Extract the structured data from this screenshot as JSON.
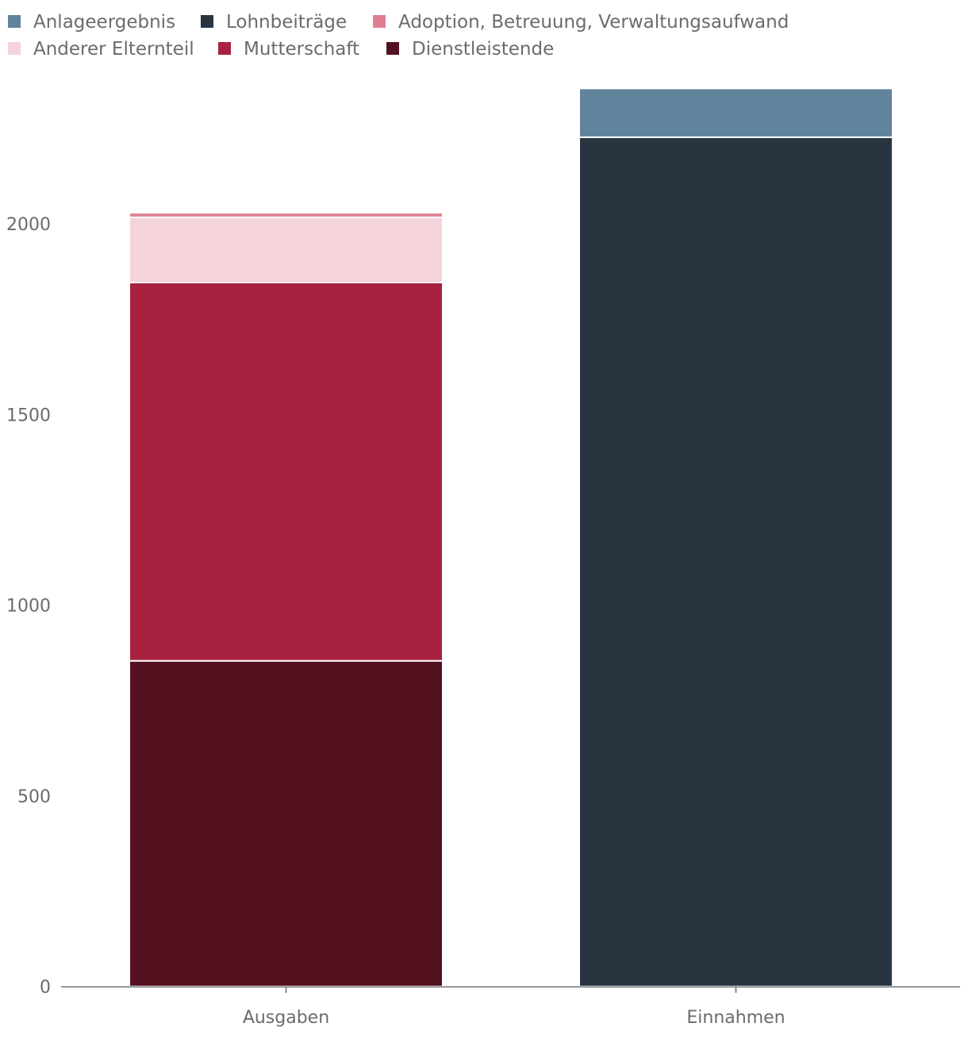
{
  "chart_data": {
    "type": "bar",
    "stacked": true,
    "categories": [
      "Ausgaben",
      "Einnahmen"
    ],
    "series": [
      {
        "name": "Dienstleistende",
        "color": "#541220",
        "values": [
          854,
          0
        ]
      },
      {
        "name": "Mutterschaft",
        "color": "#a82240",
        "values": [
          992,
          0
        ]
      },
      {
        "name": "Anderer Elternteil",
        "color": "#f4d3db",
        "values": [
          171,
          0
        ]
      },
      {
        "name": "Adoption, Betreuung, Verwaltungsaufwand",
        "color": "#e07f93",
        "values": [
          12,
          0
        ]
      },
      {
        "name": "Lohnbeiträge",
        "color": "#283541",
        "values": [
          0,
          2227
        ]
      },
      {
        "name": "Anlageergebnis",
        "color": "#5f849c",
        "values": [
          0,
          128
        ]
      }
    ],
    "legend_order": [
      "Anlageergebnis",
      "Lohnbeiträge",
      "Adoption, Betreuung, Verwaltungsaufwand",
      "Anderer Elternteil",
      "Mutterschaft",
      "Dienstleistende"
    ],
    "y_ticks": [
      "0",
      "500",
      "1000",
      "1500",
      "2000"
    ],
    "ylim": [
      0,
      2355
    ],
    "title": "",
    "xlabel": "",
    "ylabel": "",
    "grid": false,
    "legend_position": "top-left"
  }
}
